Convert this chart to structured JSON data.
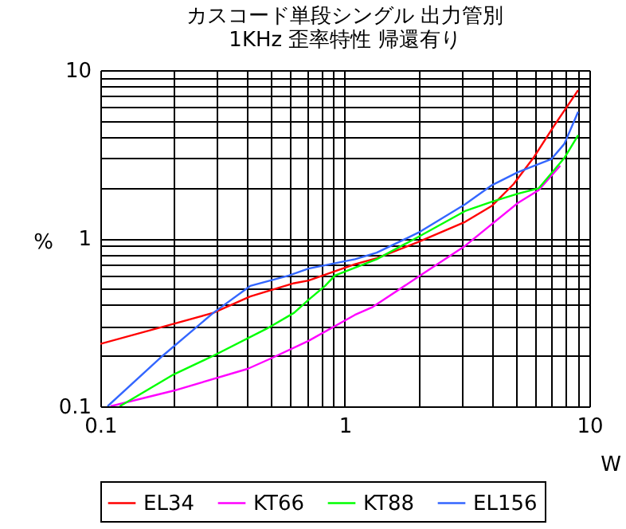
{
  "chart_data": {
    "type": "line",
    "title": [
      "カスコード単段シングル 出力管別",
      "1KHz 歪率特性 帰還有り"
    ],
    "xlabel": "W",
    "ylabel": "%",
    "log": "xy",
    "grid": true,
    "legend": "bottom",
    "line_style": "solid",
    "marker": "none",
    "xlim": [
      0.1,
      10
    ],
    "ylim": [
      0.1,
      10
    ],
    "xticks": [
      0.1,
      {
        "value": 0.2,
        "label": null
      },
      {
        "value": 0.3,
        "label": null
      },
      {
        "value": 0.4,
        "label": null
      },
      {
        "value": 0.5,
        "label": null
      },
      {
        "value": 0.6,
        "label": null
      },
      {
        "value": 0.7,
        "label": null
      },
      {
        "value": 0.8,
        "label": null
      },
      {
        "value": 0.9,
        "label": null
      },
      1,
      {
        "value": 2,
        "label": null
      },
      {
        "value": 3,
        "label": null
      },
      {
        "value": 4,
        "label": null
      },
      {
        "value": 5,
        "label": null
      },
      {
        "value": 6,
        "label": null
      },
      {
        "value": 7,
        "label": null
      },
      {
        "value": 8,
        "label": null
      },
      {
        "value": 9,
        "label": null
      },
      10
    ],
    "yticks": [
      0.1,
      {
        "value": 0.2,
        "label": null
      },
      {
        "value": 0.3,
        "label": null
      },
      {
        "value": 0.4,
        "label": null
      },
      {
        "value": 0.5,
        "label": null
      },
      {
        "value": 0.6,
        "label": null
      },
      {
        "value": 0.7,
        "label": null
      },
      {
        "value": 0.8,
        "label": null
      },
      {
        "value": 0.9,
        "label": null
      },
      1,
      {
        "value": 2,
        "label": null
      },
      {
        "value": 3,
        "label": null
      },
      {
        "value": 4,
        "label": null
      },
      {
        "value": 5,
        "label": null
      },
      {
        "value": 6,
        "label": null
      },
      {
        "value": 7,
        "label": null
      },
      {
        "value": 8,
        "label": null
      },
      {
        "value": 9,
        "label": null
      },
      10
    ],
    "series": [
      {
        "name": "EL34",
        "color": "#ff0000",
        "x": [
          0.1,
          0.2,
          0.29,
          0.41,
          0.62,
          0.71,
          1.1,
          1.35,
          2.0,
          3.1,
          4.0,
          4.9,
          5.9,
          7.2,
          9.0
        ],
        "values": [
          0.235,
          0.31,
          0.36,
          0.45,
          0.54,
          0.56,
          0.7,
          0.76,
          0.95,
          1.25,
          1.56,
          2.1,
          3.0,
          4.7,
          7.6
        ]
      },
      {
        "name": "KT66",
        "color": "#ff00ff",
        "x": [
          0.11,
          0.2,
          0.4,
          0.5,
          0.71,
          1.1,
          1.3,
          2.0,
          3.1,
          5.1,
          6.2,
          7.6
        ],
        "values": [
          0.1,
          0.124,
          0.167,
          0.193,
          0.245,
          0.35,
          0.39,
          0.59,
          0.9,
          1.62,
          1.93,
          2.7
        ]
      },
      {
        "name": "KT88",
        "color": "#00ff00",
        "x": [
          0.12,
          0.2,
          0.29,
          0.48,
          0.62,
          0.71,
          0.83,
          0.91,
          1.35,
          2.0,
          3.1,
          4.0,
          5.1,
          6.2,
          7.9,
          9.0
        ],
        "values": [
          0.1,
          0.155,
          0.2,
          0.29,
          0.36,
          0.43,
          0.52,
          0.6,
          0.75,
          1.02,
          1.45,
          1.65,
          1.84,
          1.98,
          3.0,
          4.1
        ]
      },
      {
        "name": "EL156",
        "color": "#3366ff",
        "x": [
          0.107,
          0.18,
          0.29,
          0.41,
          0.59,
          0.71,
          1.1,
          1.35,
          2.0,
          3.1,
          4.0,
          5.1,
          7.0,
          7.9,
          9.0
        ],
        "values": [
          0.1,
          0.2,
          0.36,
          0.52,
          0.6,
          0.66,
          0.75,
          0.82,
          1.08,
          1.59,
          2.07,
          2.47,
          2.96,
          3.64,
          5.66
        ]
      }
    ]
  }
}
